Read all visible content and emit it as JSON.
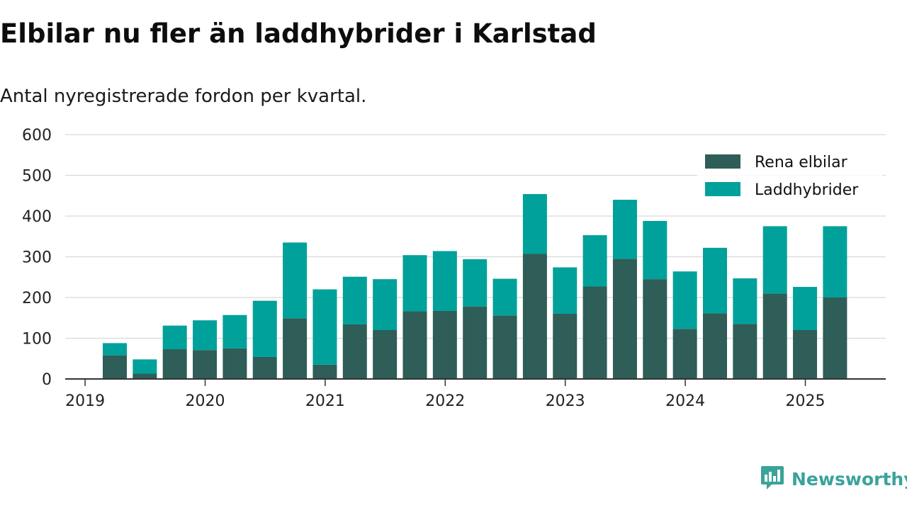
{
  "header": {
    "title": "Elbilar nu fler än laddhybrider i Karlstad",
    "subtitle": "Antal nyregistrerade fordon per kvartal."
  },
  "brand": {
    "name": "Newsworthy",
    "icon": "newsworthy-logo-icon",
    "color": "#3aa39a"
  },
  "colors": {
    "series_bev": "#2f5d57",
    "series_phev": "#00a19a",
    "grid": "#d9d9d9",
    "axis": "#333333"
  },
  "chart_data": {
    "type": "bar",
    "stacked": true,
    "categories": [
      "2019 Q2",
      "2019 Q3",
      "2019 Q4",
      "2020 Q1",
      "2020 Q2",
      "2020 Q3",
      "2020 Q4",
      "2021 Q1",
      "2021 Q2",
      "2021 Q3",
      "2021 Q4",
      "2022 Q1",
      "2022 Q2",
      "2022 Q3",
      "2022 Q4",
      "2023 Q1",
      "2023 Q2",
      "2023 Q3",
      "2023 Q4",
      "2024 Q1",
      "2024 Q2",
      "2024 Q3",
      "2024 Q4",
      "2025 Q1",
      "2025 Q2"
    ],
    "series": [
      {
        "name": "Rena elbilar",
        "color": "#2f5d57",
        "values": [
          58,
          13,
          73,
          71,
          75,
          54,
          149,
          35,
          134,
          120,
          166,
          167,
          178,
          156,
          307,
          160,
          227,
          295,
          245,
          123,
          161,
          135,
          210,
          120,
          200
        ]
      },
      {
        "name": "Laddhybrider",
        "color": "#00a19a",
        "values": [
          30,
          35,
          58,
          73,
          82,
          138,
          186,
          185,
          117,
          125,
          138,
          147,
          116,
          90,
          147,
          114,
          126,
          145,
          143,
          141,
          161,
          112,
          165,
          106,
          175
        ]
      }
    ],
    "xlabel": "",
    "ylabel": "",
    "ylim": [
      0,
      600
    ],
    "yticks": [
      "0",
      "100",
      "200",
      "300",
      "400",
      "500",
      "600"
    ],
    "xticks": [
      {
        "label": "2019",
        "pos": 0.0
      },
      {
        "label": "2020",
        "pos": 4.0
      },
      {
        "label": "2021",
        "pos": 8.0
      },
      {
        "label": "2022",
        "pos": 12.0
      },
      {
        "label": "2023",
        "pos": 16.0
      },
      {
        "label": "2024",
        "pos": 20.0
      },
      {
        "label": "2025",
        "pos": 24.0
      }
    ],
    "grid": true,
    "legend": "top-right"
  }
}
